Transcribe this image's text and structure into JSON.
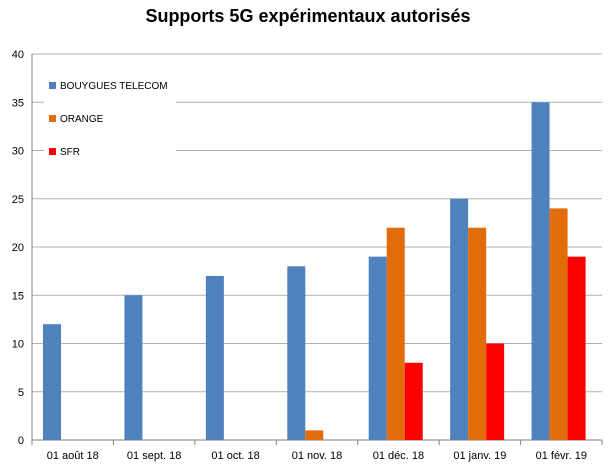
{
  "chart_data": {
    "type": "bar",
    "title": "Supports 5G expérimentaux autorisés",
    "categories": [
      "01 août 18",
      "01 sept. 18",
      "01 oct. 18",
      "01 nov. 18",
      "01 déc. 18",
      "01 janv. 19",
      "01 févr. 19"
    ],
    "series": [
      {
        "name": "BOUYGUES TELECOM",
        "color": "#4F81BD",
        "values": [
          12,
          15,
          17,
          18,
          19,
          25,
          35
        ]
      },
      {
        "name": "ORANGE",
        "color": "#E36C0A",
        "values": [
          0,
          0,
          0,
          1,
          22,
          22,
          24
        ]
      },
      {
        "name": "SFR",
        "color": "#FF0000",
        "values": [
          0,
          0,
          0,
          0,
          8,
          10,
          19
        ]
      }
    ],
    "ylim": [
      0,
      40
    ],
    "yticks": [
      0,
      5,
      10,
      15,
      20,
      25,
      30,
      35,
      40
    ],
    "grid": true,
    "legend": "top-left"
  }
}
